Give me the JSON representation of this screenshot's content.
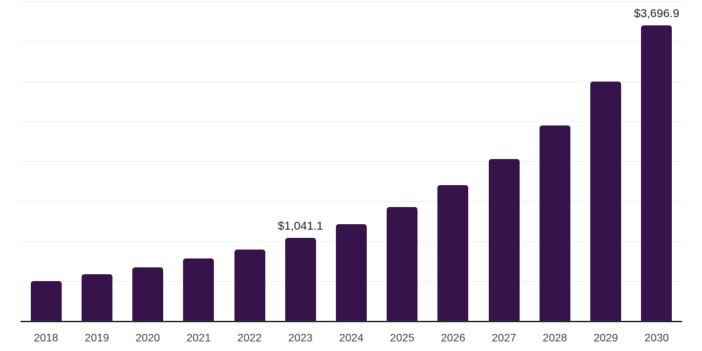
{
  "chart_data": {
    "type": "bar",
    "title": "",
    "xlabel": "",
    "ylabel": "",
    "categories": [
      "2018",
      "2019",
      "2020",
      "2021",
      "2022",
      "2023",
      "2024",
      "2025",
      "2026",
      "2027",
      "2028",
      "2029",
      "2030"
    ],
    "values": [
      500,
      585,
      670,
      780,
      890,
      1041.1,
      1210,
      1425,
      1700,
      2030,
      2445,
      3000,
      3696.9
    ],
    "data_labels": {
      "2023": "$1,041.1",
      "2030": "$3,696.9"
    },
    "ylim": [
      0,
      4000
    ],
    "gridline_step": 500,
    "grid": "horizontal-only",
    "legend": "none",
    "colors": {
      "bar": "#36134B",
      "axis_line": "#2b2b2b",
      "gridline": "#ededed",
      "data_label_text": "#1c1c1c",
      "tick_label_text": "#404040",
      "background": "#ffffff"
    }
  }
}
